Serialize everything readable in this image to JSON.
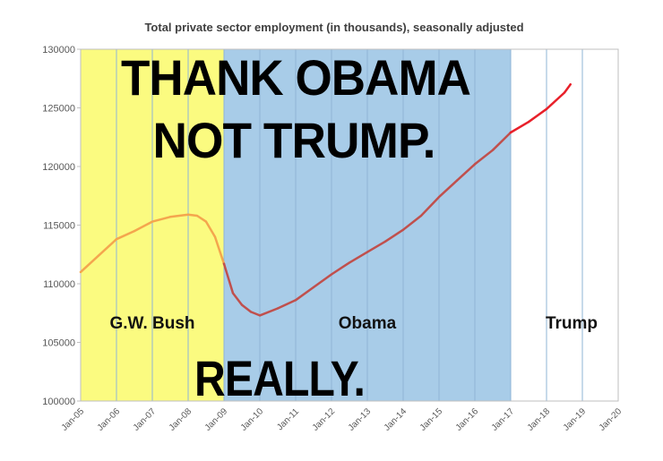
{
  "chart_data": {
    "type": "line",
    "title": "Total private sector employment (in thousands), seasonally adjusted",
    "xlabel": "",
    "ylabel": "",
    "ylim": [
      100000,
      130000
    ],
    "yticks": [
      "100000",
      "105000",
      "110000",
      "115000",
      "120000",
      "125000",
      "130000"
    ],
    "xticks": [
      "Jan-05",
      "Jan-06",
      "Jan-07",
      "Jan-08",
      "Jan-09",
      "Jan-10",
      "Jan-11",
      "Jan-12",
      "Jan-13",
      "Jan-14",
      "Jan-15",
      "Jan-16",
      "Jan-17",
      "Jan-18",
      "Jan-19",
      "Jan-20"
    ],
    "xlim": [
      "2005-01",
      "2020-01"
    ],
    "grid": "vertical gridlines at each January",
    "series": [
      {
        "color": "#f4a64e",
        "period": "Jan-05 to Jan-09",
        "x": [
          "2005-01",
          "2005-07",
          "2006-01",
          "2006-07",
          "2007-01",
          "2007-07",
          "2008-01",
          "2008-04",
          "2008-07",
          "2008-10",
          "2009-01"
        ],
        "y": [
          111000,
          112400,
          113800,
          114500,
          115300,
          115700,
          115900,
          115800,
          115300,
          114000,
          111700
        ]
      },
      {
        "color": "#c0504d",
        "period": "Jan-09 to Jan-17",
        "x": [
          "2009-01",
          "2009-04",
          "2009-07",
          "2009-10",
          "2010-01",
          "2010-07",
          "2011-01",
          "2011-07",
          "2012-01",
          "2012-07",
          "2013-01",
          "2013-07",
          "2014-01",
          "2014-07",
          "2015-01",
          "2015-07",
          "2016-01",
          "2016-07",
          "2017-01"
        ],
        "y": [
          111700,
          109200,
          108200,
          107600,
          107300,
          107900,
          108600,
          109700,
          110800,
          111800,
          112700,
          113600,
          114600,
          115800,
          117400,
          118800,
          120200,
          121400,
          122900
        ]
      },
      {
        "color": "#e8202a",
        "period": "Jan-17 onward",
        "x": [
          "2017-01",
          "2017-07",
          "2018-01",
          "2018-07",
          "2018-09"
        ],
        "y": [
          122900,
          123800,
          124900,
          126300,
          127000
        ]
      }
    ],
    "regions": [
      {
        "label": "G.W. Bush",
        "start": "2005-01",
        "end": "2009-01",
        "color": "#fbfb80"
      },
      {
        "label": "Obama",
        "start": "2009-01",
        "end": "2017-01",
        "color": "#a8cce8"
      },
      {
        "label": "Trump",
        "start": "2017-01",
        "end": "2020-01",
        "color": "#ffffff"
      }
    ]
  },
  "overlay": {
    "headline_line1": "THANK OBAMA",
    "headline_line2": "NOT TRUMP.",
    "footer": "REALLY."
  }
}
